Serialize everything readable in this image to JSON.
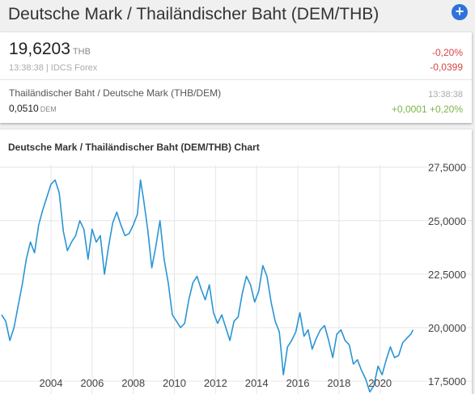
{
  "header": {
    "title": "Deutsche Mark / Thailändischer Baht (DEM/THB)",
    "add_icon": "plus-circle-icon",
    "add_symbol": "+"
  },
  "quote": {
    "price": "19,6203",
    "unit": "THB",
    "time_source": "13:38:38 | IDCS Forex",
    "change_pct": "-0,20%",
    "change_abs": "-0,0399"
  },
  "inverse": {
    "name": "Thailändischer Baht / Deutsche Mark (THB/DEM)",
    "price": "0,0510",
    "unit": "DEM",
    "time": "13:38:38",
    "change": "+0,0001 +0,20%"
  },
  "colors": {
    "accent": "#2e73d9",
    "negative": "#d84545",
    "positive": "#7ab648",
    "line": "#2a95d3"
  },
  "chart_data": {
    "type": "line",
    "title": "Deutsche Mark / Thailändischer Baht (DEM/THB) Chart",
    "xlabel": "",
    "ylabel": "",
    "xlim": [
      2001.6,
      2021.9
    ],
    "ylim": [
      16.9,
      27.6
    ],
    "x_ticks": [
      2004,
      2006,
      2008,
      2010,
      2012,
      2014,
      2016,
      2018,
      2020
    ],
    "x_tick_labels": [
      "2004",
      "2006",
      "2008",
      "2010",
      "2012",
      "2014",
      "2016",
      "2018",
      "2020"
    ],
    "y_ticks": [
      17.5,
      20,
      22.5,
      25,
      27.5
    ],
    "y_tick_labels": [
      "17,5000",
      "20,0000",
      "22,5000",
      "25,0000",
      "27,5000"
    ],
    "grid": true,
    "series": [
      {
        "x": [
          2001.6,
          2001.8,
          2002.0,
          2002.2,
          2002.4,
          2002.6,
          2002.8,
          2003.0,
          2003.2,
          2003.4,
          2003.6,
          2003.8,
          2004.0,
          2004.2,
          2004.4,
          2004.6,
          2004.8,
          2005.0,
          2005.2,
          2005.4,
          2005.6,
          2005.8,
          2006.0,
          2006.2,
          2006.4,
          2006.6,
          2006.8,
          2007.0,
          2007.2,
          2007.4,
          2007.6,
          2007.8,
          2008.0,
          2008.2,
          2008.35,
          2008.5,
          2008.7,
          2008.9,
          2009.1,
          2009.3,
          2009.5,
          2009.7,
          2009.9,
          2010.1,
          2010.3,
          2010.5,
          2010.7,
          2010.9,
          2011.1,
          2011.3,
          2011.5,
          2011.7,
          2011.9,
          2012.1,
          2012.3,
          2012.5,
          2012.7,
          2012.9,
          2013.1,
          2013.3,
          2013.5,
          2013.7,
          2013.9,
          2014.1,
          2014.3,
          2014.5,
          2014.7,
          2014.9,
          2015.1,
          2015.3,
          2015.5,
          2015.7,
          2015.9,
          2016.1,
          2016.3,
          2016.5,
          2016.7,
          2016.9,
          2017.1,
          2017.3,
          2017.5,
          2017.7,
          2017.9,
          2018.1,
          2018.3,
          2018.5,
          2018.7,
          2018.9,
          2019.1,
          2019.3,
          2019.5,
          2019.7,
          2019.9,
          2020.1,
          2020.3,
          2020.5,
          2020.7,
          2020.9,
          2021.1,
          2021.3,
          2021.5,
          2021.6
        ],
        "y": [
          20.6,
          20.3,
          19.4,
          20.0,
          21.0,
          22.0,
          23.2,
          24.0,
          23.5,
          24.8,
          25.5,
          26.1,
          26.7,
          26.9,
          26.3,
          24.5,
          23.6,
          24.0,
          24.3,
          25.0,
          24.6,
          23.2,
          24.6,
          24.0,
          24.3,
          22.5,
          23.8,
          24.9,
          25.4,
          24.8,
          24.3,
          24.4,
          24.8,
          25.3,
          26.9,
          26.0,
          24.6,
          22.8,
          23.8,
          25.0,
          23.2,
          22.1,
          20.6,
          20.3,
          20.0,
          20.2,
          21.3,
          22.1,
          22.4,
          21.8,
          21.3,
          22.0,
          20.7,
          20.2,
          20.6,
          20.0,
          19.4,
          20.3,
          20.5,
          21.6,
          22.4,
          22.0,
          21.2,
          21.7,
          22.9,
          22.4,
          21.2,
          20.3,
          19.8,
          17.8,
          19.1,
          19.4,
          19.8,
          20.7,
          19.6,
          19.9,
          19.0,
          19.5,
          19.9,
          20.1,
          19.4,
          18.6,
          19.7,
          19.9,
          19.4,
          19.2,
          18.3,
          18.5,
          18.0,
          17.6,
          17.0,
          17.3,
          18.2,
          17.8,
          18.5,
          19.1,
          18.6,
          18.7,
          19.3,
          19.5,
          19.7,
          19.9
        ]
      }
    ]
  }
}
